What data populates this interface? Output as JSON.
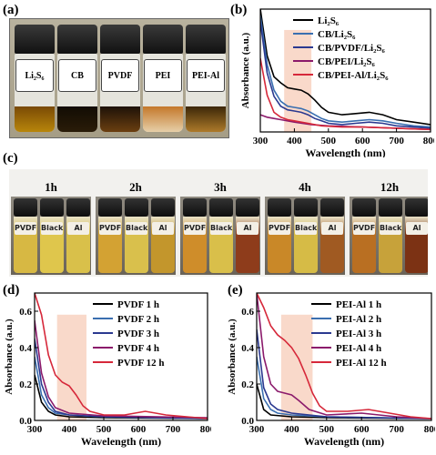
{
  "panels": {
    "a": "(a)",
    "b": "(b)",
    "c": "(c)",
    "d": "(d)",
    "e": "(e)"
  },
  "photo_a": {
    "vials": [
      {
        "label": "Li₂S₆",
        "liquid": "#b8860b",
        "top": "#7a4a05"
      },
      {
        "label": "CB",
        "liquid": "#2a1c08",
        "top": "#120c04"
      },
      {
        "label": "PVDF",
        "liquid": "#6b3f10",
        "top": "#1e1208"
      },
      {
        "label": "PEI",
        "liquid": "#e6cfa8",
        "top": "#c4782a"
      },
      {
        "label": "PEI-Al",
        "liquid": "#ad7a2a",
        "top": "#3c2708"
      }
    ]
  },
  "photo_c": {
    "groups": [
      {
        "time": "1h",
        "vials": [
          "PVDF",
          "Black",
          "Al"
        ],
        "colors": [
          "#d7b843",
          "#dfc64c",
          "#d9c04a"
        ]
      },
      {
        "time": "2h",
        "vials": [
          "PVDF",
          "Black",
          "Al"
        ],
        "colors": [
          "#d3a233",
          "#d9c04c",
          "#c3962c"
        ]
      },
      {
        "time": "3h",
        "vials": [
          "PVDF",
          "Black",
          "Al"
        ],
        "colors": [
          "#cf8d2a",
          "#d9bf4a",
          "#8e3c1b"
        ]
      },
      {
        "time": "4h",
        "vials": [
          "PVDF",
          "Black",
          "Al"
        ],
        "colors": [
          "#c98828",
          "#d6bb46",
          "#a05a22"
        ]
      },
      {
        "time": "12h",
        "vials": [
          "PVDF",
          "Black",
          "Al"
        ],
        "colors": [
          "#b96f22",
          "#c7a23a",
          "#7c3214"
        ]
      }
    ]
  },
  "chart_data": [
    {
      "type": "line",
      "panel": "b",
      "xlabel": "Wavelength (nm)",
      "ylabel": "Absorbance (a.u.)",
      "xlim": [
        300,
        800
      ],
      "ylim": [
        0,
        1.0
      ],
      "xticks": [
        "300",
        "400",
        "500",
        "600",
        "700",
        "800"
      ],
      "highlight_x": [
        370,
        450
      ],
      "series": [
        {
          "name": "Li₂S₆",
          "color": "#000000",
          "points": [
            [
              300,
              1.0
            ],
            [
              320,
              0.62
            ],
            [
              340,
              0.45
            ],
            [
              360,
              0.4
            ],
            [
              380,
              0.36
            ],
            [
              400,
              0.35
            ],
            [
              420,
              0.34
            ],
            [
              440,
              0.31
            ],
            [
              460,
              0.26
            ],
            [
              480,
              0.2
            ],
            [
              500,
              0.16
            ],
            [
              540,
              0.14
            ],
            [
              580,
              0.15
            ],
            [
              620,
              0.16
            ],
            [
              660,
              0.14
            ],
            [
              700,
              0.1
            ],
            [
              750,
              0.08
            ],
            [
              800,
              0.06
            ]
          ]
        },
        {
          "name": "CB/Li₂S₆",
          "color": "#3a6fb0",
          "points": [
            [
              300,
              0.95
            ],
            [
              320,
              0.55
            ],
            [
              340,
              0.34
            ],
            [
              360,
              0.25
            ],
            [
              380,
              0.21
            ],
            [
              400,
              0.2
            ],
            [
              420,
              0.19
            ],
            [
              440,
              0.17
            ],
            [
              460,
              0.14
            ],
            [
              480,
              0.11
            ],
            [
              500,
              0.09
            ],
            [
              540,
              0.08
            ],
            [
              580,
              0.09
            ],
            [
              620,
              0.1
            ],
            [
              660,
              0.09
            ],
            [
              700,
              0.07
            ],
            [
              750,
              0.05
            ],
            [
              800,
              0.04
            ]
          ]
        },
        {
          "name": "CB/PVDF/Li₂S₆",
          "color": "#2b3990",
          "points": [
            [
              300,
              0.9
            ],
            [
              320,
              0.48
            ],
            [
              340,
              0.29
            ],
            [
              360,
              0.21
            ],
            [
              380,
              0.18
            ],
            [
              400,
              0.17
            ],
            [
              420,
              0.16
            ],
            [
              440,
              0.14
            ],
            [
              460,
              0.11
            ],
            [
              480,
              0.09
            ],
            [
              500,
              0.07
            ],
            [
              540,
              0.06
            ],
            [
              580,
              0.07
            ],
            [
              620,
              0.08
            ],
            [
              660,
              0.07
            ],
            [
              700,
              0.05
            ],
            [
              750,
              0.04
            ],
            [
              800,
              0.03
            ]
          ]
        },
        {
          "name": "CB/PEI/Li₂S₆",
          "color": "#8b1a6b",
          "points": [
            [
              300,
              0.14
            ],
            [
              320,
              0.12
            ],
            [
              340,
              0.11
            ],
            [
              360,
              0.1
            ],
            [
              400,
              0.08
            ],
            [
              450,
              0.06
            ],
            [
              500,
              0.05
            ],
            [
              600,
              0.04
            ],
            [
              700,
              0.03
            ],
            [
              800,
              0.02
            ]
          ]
        },
        {
          "name": "CB/PEI-Al/Li₂S₆",
          "color": "#d6283a",
          "points": [
            [
              300,
              0.6
            ],
            [
              320,
              0.3
            ],
            [
              340,
              0.16
            ],
            [
              360,
              0.12
            ],
            [
              380,
              0.1
            ],
            [
              400,
              0.09
            ],
            [
              440,
              0.07
            ],
            [
              480,
              0.05
            ],
            [
              540,
              0.04
            ],
            [
              600,
              0.04
            ],
            [
              700,
              0.03
            ],
            [
              800,
              0.02
            ]
          ]
        }
      ]
    },
    {
      "type": "line",
      "panel": "d",
      "xlabel": "Wavelength (nm)",
      "ylabel": "Absorbance (a.u.)",
      "xlim": [
        300,
        800
      ],
      "ylim": [
        0,
        0.7
      ],
      "xticks": [
        "300",
        "400",
        "500",
        "600",
        "700",
        "800"
      ],
      "yticks": [
        "0.0",
        "0.2",
        "0.4",
        "0.6"
      ],
      "highlight_x": [
        365,
        450
      ],
      "series": [
        {
          "name": "PVDF 1 h",
          "color": "#000000",
          "points": [
            [
              300,
              0.25
            ],
            [
              320,
              0.1
            ],
            [
              340,
              0.05
            ],
            [
              360,
              0.03
            ],
            [
              400,
              0.02
            ],
            [
              500,
              0.015
            ],
            [
              800,
              0.01
            ]
          ]
        },
        {
          "name": "PVDF 2 h",
          "color": "#3a6fb0",
          "points": [
            [
              300,
              0.35
            ],
            [
              320,
              0.14
            ],
            [
              340,
              0.07
            ],
            [
              360,
              0.04
            ],
            [
              400,
              0.03
            ],
            [
              500,
              0.02
            ],
            [
              800,
              0.01
            ]
          ]
        },
        {
          "name": "PVDF 3 h",
          "color": "#2b3990",
          "points": [
            [
              300,
              0.45
            ],
            [
              320,
              0.2
            ],
            [
              340,
              0.1
            ],
            [
              360,
              0.05
            ],
            [
              400,
              0.03
            ],
            [
              500,
              0.02
            ],
            [
              800,
              0.01
            ]
          ]
        },
        {
          "name": "PVDF 4 h",
          "color": "#8b1a6b",
          "points": [
            [
              300,
              0.55
            ],
            [
              320,
              0.26
            ],
            [
              340,
              0.13
            ],
            [
              360,
              0.07
            ],
            [
              400,
              0.04
            ],
            [
              500,
              0.025
            ],
            [
              800,
              0.015
            ]
          ]
        },
        {
          "name": "PVDF 12 h",
          "color": "#d6283a",
          "points": [
            [
              300,
              0.75
            ],
            [
              320,
              0.58
            ],
            [
              340,
              0.36
            ],
            [
              360,
              0.25
            ],
            [
              380,
              0.21
            ],
            [
              400,
              0.19
            ],
            [
              420,
              0.14
            ],
            [
              440,
              0.08
            ],
            [
              460,
              0.05
            ],
            [
              500,
              0.03
            ],
            [
              560,
              0.03
            ],
            [
              620,
              0.05
            ],
            [
              680,
              0.03
            ],
            [
              740,
              0.02
            ],
            [
              800,
              0.01
            ]
          ]
        }
      ]
    },
    {
      "type": "line",
      "panel": "e",
      "xlabel": "Wavelength (nm)",
      "ylabel": "Absorbance (a.u.)",
      "xlim": [
        300,
        800
      ],
      "ylim": [
        0,
        0.7
      ],
      "xticks": [
        "300",
        "400",
        "500",
        "600",
        "700",
        "800"
      ],
      "yticks": [
        "0.0",
        "0.2",
        "0.4",
        "0.6"
      ],
      "highlight_x": [
        370,
        460
      ],
      "series": [
        {
          "name": "PEI-Al 1 h",
          "color": "#000000",
          "points": [
            [
              300,
              0.2
            ],
            [
              320,
              0.06
            ],
            [
              340,
              0.03
            ],
            [
              400,
              0.02
            ],
            [
              500,
              0.015
            ],
            [
              800,
              0.01
            ]
          ]
        },
        {
          "name": "PEI-Al 2 h",
          "color": "#3a6fb0",
          "points": [
            [
              300,
              0.35
            ],
            [
              320,
              0.12
            ],
            [
              340,
              0.06
            ],
            [
              360,
              0.04
            ],
            [
              400,
              0.03
            ],
            [
              500,
              0.02
            ],
            [
              800,
              0.01
            ]
          ]
        },
        {
          "name": "PEI-Al 3 h",
          "color": "#2b3990",
          "points": [
            [
              300,
              0.5
            ],
            [
              320,
              0.18
            ],
            [
              340,
              0.09
            ],
            [
              360,
              0.06
            ],
            [
              400,
              0.04
            ],
            [
              500,
              0.02
            ],
            [
              800,
              0.01
            ]
          ]
        },
        {
          "name": "PEI-Al 4 h",
          "color": "#8b1a6b",
          "points": [
            [
              300,
              0.7
            ],
            [
              320,
              0.35
            ],
            [
              340,
              0.2
            ],
            [
              360,
              0.16
            ],
            [
              380,
              0.15
            ],
            [
              400,
              0.14
            ],
            [
              420,
              0.11
            ],
            [
              450,
              0.06
            ],
            [
              500,
              0.03
            ],
            [
              600,
              0.04
            ],
            [
              700,
              0.02
            ],
            [
              800,
              0.01
            ]
          ]
        },
        {
          "name": "PEI-Al 12 h",
          "color": "#d6283a",
          "points": [
            [
              300,
              0.75
            ],
            [
              320,
              0.62
            ],
            [
              340,
              0.52
            ],
            [
              360,
              0.47
            ],
            [
              380,
              0.44
            ],
            [
              400,
              0.4
            ],
            [
              420,
              0.34
            ],
            [
              440,
              0.25
            ],
            [
              460,
              0.15
            ],
            [
              480,
              0.08
            ],
            [
              500,
              0.05
            ],
            [
              560,
              0.05
            ],
            [
              620,
              0.06
            ],
            [
              680,
              0.04
            ],
            [
              740,
              0.02
            ],
            [
              800,
              0.01
            ]
          ]
        }
      ]
    }
  ]
}
